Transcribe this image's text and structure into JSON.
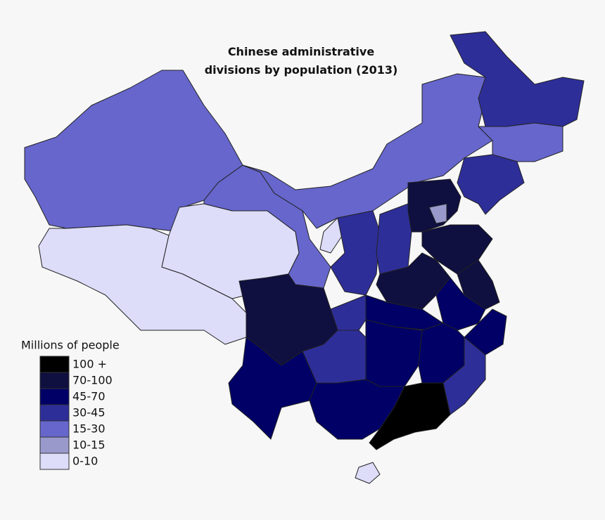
{
  "title": [
    "Chinese administrative",
    "divisions by population (2013)"
  ],
  "legend": {
    "title": "Millions of people",
    "items": [
      {
        "label": "100 +",
        "color": "#000000"
      },
      {
        "label": "70-100",
        "color": "#0f0f40"
      },
      {
        "label": "45-70",
        "color": "#000066"
      },
      {
        "label": "30-45",
        "color": "#2e2e99"
      },
      {
        "label": "15-30",
        "color": "#6666cc"
      },
      {
        "label": "10-15",
        "color": "#9999cc"
      },
      {
        "label": "0-10",
        "color": "#ddddfa"
      }
    ]
  }
}
